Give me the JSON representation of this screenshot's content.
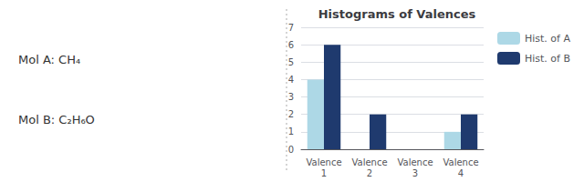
{
  "chart_data": {
    "type": "bar",
    "title": "Histograms of Valences",
    "categories": [
      "Valence\n1",
      "Valence\n2",
      "Valence\n3",
      "Valence\n4"
    ],
    "series": [
      {
        "name": "Hist. of A",
        "color": "#ADD8E6",
        "values": [
          4,
          0,
          0,
          1
        ]
      },
      {
        "name": "Hist. of B",
        "color": "#1F3A6E",
        "values": [
          6,
          2,
          0,
          2
        ]
      }
    ],
    "ylim": [
      0,
      7
    ],
    "yticks": [
      0,
      1,
      2,
      3,
      4,
      5,
      6,
      7
    ],
    "grid": true,
    "legend": "right",
    "annotations": [
      "Mol A: CH₄",
      "Mol B: C₂H₆O"
    ]
  }
}
